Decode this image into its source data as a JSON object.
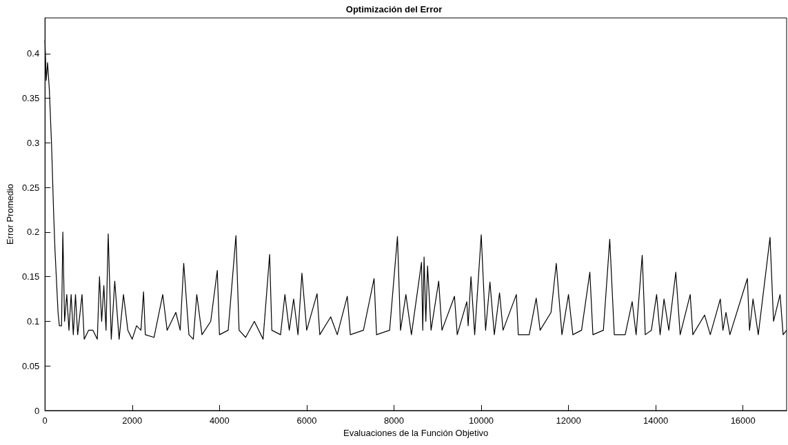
{
  "chart_data": {
    "type": "line",
    "title": "Optimización del Error",
    "xlabel": "Evaluaciones de la Función Objetivo",
    "ylabel": "Error Promedio",
    "x": [
      0,
      30,
      60,
      100,
      150,
      200,
      230,
      260,
      300,
      330,
      380,
      410,
      450,
      500,
      550,
      600,
      650,
      700,
      750,
      850,
      900,
      1000,
      1100,
      1200,
      1250,
      1300,
      1350,
      1400,
      1450,
      1520,
      1600,
      1700,
      1800,
      1900,
      2000,
      2100,
      2200,
      2260,
      2300,
      2500,
      2700,
      2800,
      3000,
      3100,
      3181,
      3300,
      3400,
      3480,
      3600,
      3800,
      3950,
      4000,
      4200,
      4378,
      4450,
      4600,
      4800,
      5000,
      5150,
      5200,
      5400,
      5500,
      5600,
      5700,
      5800,
      5890,
      6000,
      6237,
      6300,
      6550,
      6700,
      6930,
      7000,
      7300,
      7544,
      7600,
      7900,
      8080,
      8150,
      8273,
      8400,
      8631,
      8660,
      8690,
      8730,
      8770,
      8850,
      9025,
      9100,
      9387,
      9450,
      9670,
      9700,
      9765,
      9850,
      10000,
      10100,
      10200,
      10300,
      10420,
      10500,
      10805,
      10850,
      11100,
      11260,
      11350,
      11600,
      11720,
      11850,
      12000,
      12100,
      12300,
      12490,
      12560,
      12800,
      12946,
      13050,
      13300,
      13460,
      13550,
      13690,
      13760,
      13900,
      14020,
      14100,
      14190,
      14300,
      14460,
      14560,
      14790,
      14850,
      15120,
      15250,
      15480,
      15540,
      15610,
      15700,
      16100,
      16150,
      16230,
      16350,
      16620,
      16700,
      16850,
      16920,
      17000
    ],
    "series": [
      {
        "color": "#000000",
        "values": [
          0.415,
          0.37,
          0.39,
          0.36,
          0.3,
          0.22,
          0.18,
          0.15,
          0.11,
          0.095,
          0.095,
          0.2,
          0.1,
          0.13,
          0.09,
          0.13,
          0.085,
          0.13,
          0.085,
          0.13,
          0.08,
          0.09,
          0.09,
          0.08,
          0.15,
          0.1,
          0.14,
          0.09,
          0.198,
          0.08,
          0.145,
          0.08,
          0.13,
          0.09,
          0.08,
          0.095,
          0.09,
          0.133,
          0.085,
          0.082,
          0.13,
          0.09,
          0.11,
          0.09,
          0.165,
          0.085,
          0.08,
          0.13,
          0.085,
          0.1,
          0.157,
          0.085,
          0.09,
          0.196,
          0.09,
          0.082,
          0.1,
          0.08,
          0.175,
          0.09,
          0.085,
          0.13,
          0.09,
          0.125,
          0.085,
          0.154,
          0.09,
          0.131,
          0.085,
          0.105,
          0.085,
          0.128,
          0.085,
          0.09,
          0.148,
          0.085,
          0.09,
          0.195,
          0.09,
          0.13,
          0.085,
          0.166,
          0.09,
          0.172,
          0.1,
          0.162,
          0.09,
          0.145,
          0.09,
          0.128,
          0.085,
          0.122,
          0.095,
          0.15,
          0.085,
          0.197,
          0.09,
          0.144,
          0.085,
          0.132,
          0.09,
          0.13,
          0.085,
          0.085,
          0.126,
          0.09,
          0.11,
          0.165,
          0.085,
          0.13,
          0.085,
          0.09,
          0.155,
          0.085,
          0.09,
          0.192,
          0.085,
          0.085,
          0.122,
          0.085,
          0.174,
          0.085,
          0.09,
          0.13,
          0.085,
          0.125,
          0.09,
          0.155,
          0.085,
          0.13,
          0.085,
          0.107,
          0.085,
          0.125,
          0.09,
          0.11,
          0.085,
          0.148,
          0.09,
          0.125,
          0.085,
          0.194,
          0.1,
          0.13,
          0.085,
          0.09
        ]
      }
    ],
    "xlim": [
      0,
      17000
    ],
    "xticks": [
      0,
      2000,
      4000,
      6000,
      8000,
      10000,
      12000,
      14000,
      16000
    ],
    "ylim": [
      0,
      0.44
    ],
    "yticks": [
      0,
      0.05,
      0.1,
      0.15,
      0.2,
      0.25,
      0.3,
      0.35,
      0.4
    ],
    "grid": false,
    "marker": "none",
    "line_style": "solid"
  }
}
